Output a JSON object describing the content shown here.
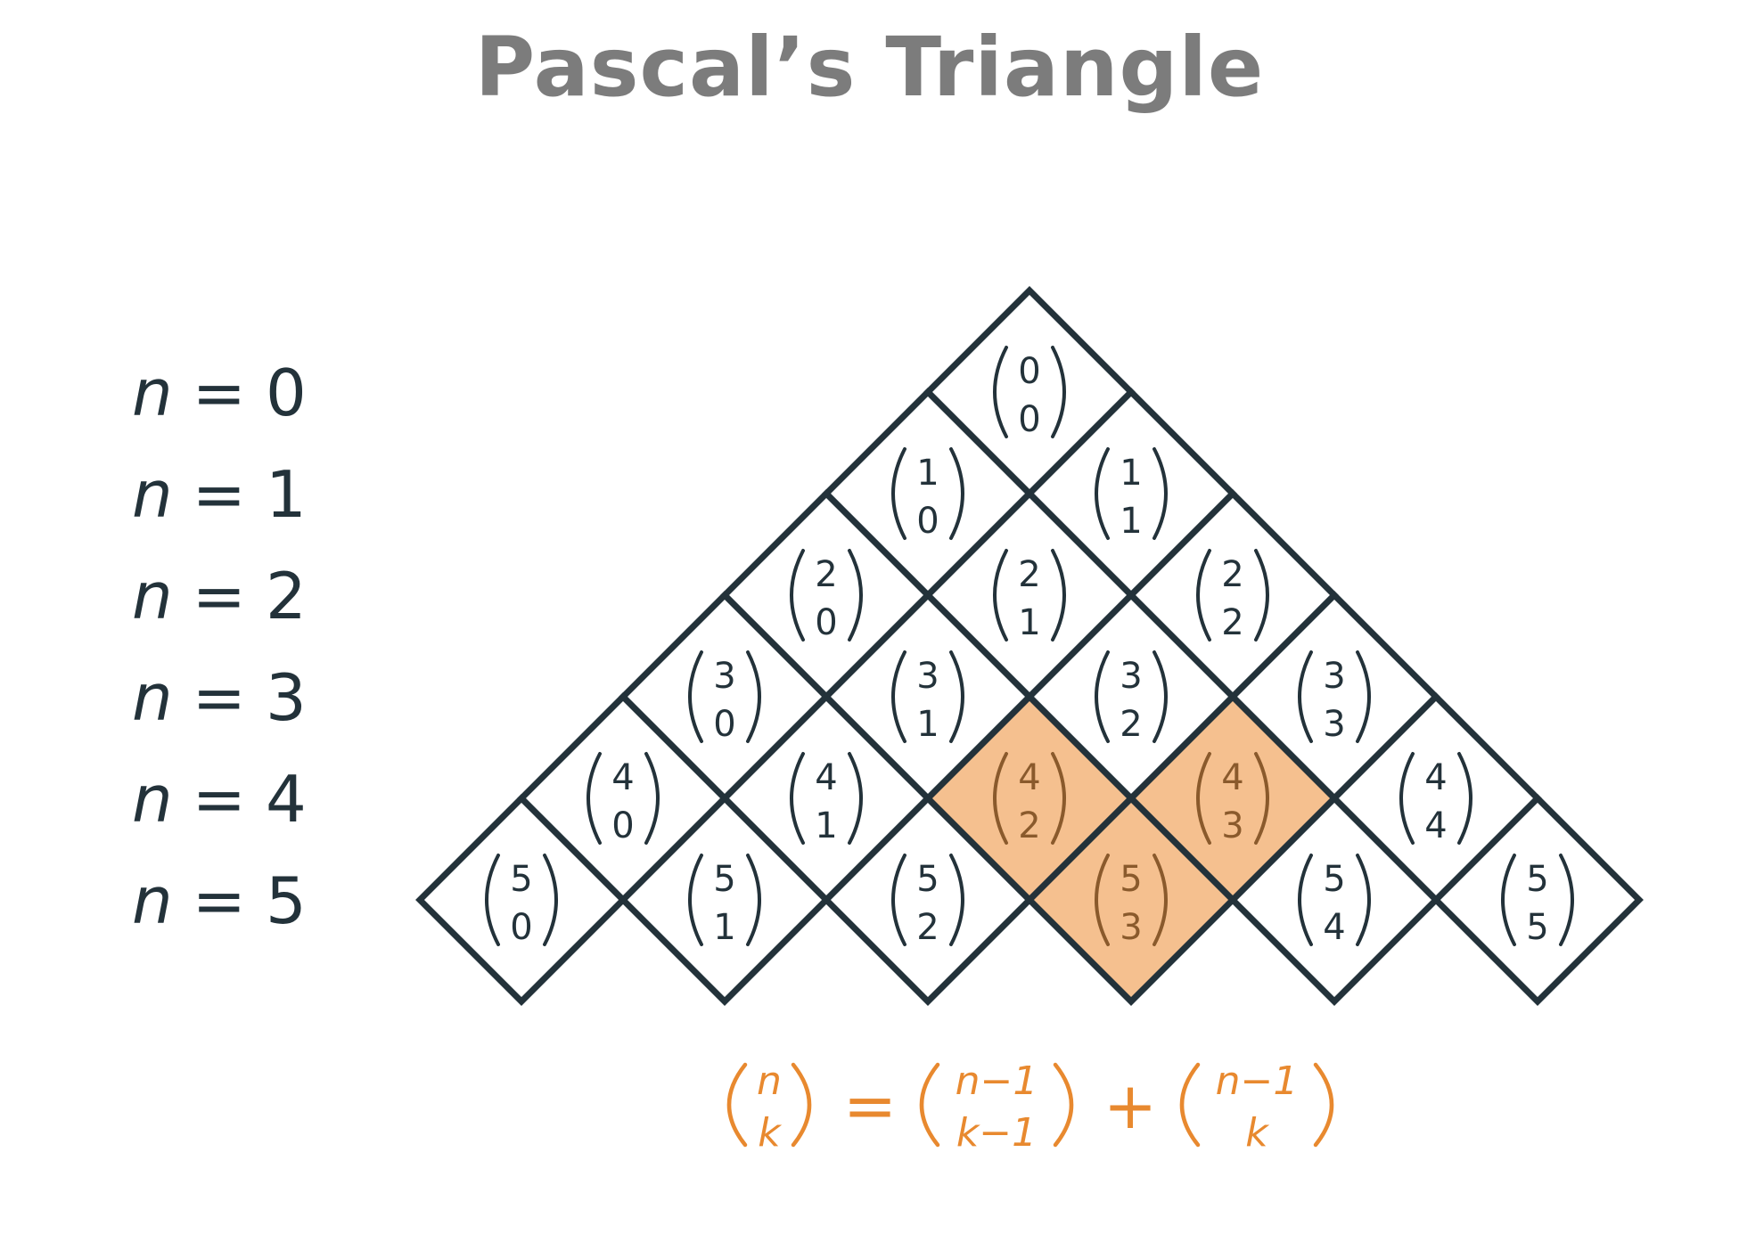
{
  "title": "Pascal’s Triangle",
  "row_labels": [
    {
      "var": "n",
      "eq": "=",
      "value": "0"
    },
    {
      "var": "n",
      "eq": "=",
      "value": "1"
    },
    {
      "var": "n",
      "eq": "=",
      "value": "2"
    },
    {
      "var": "n",
      "eq": "=",
      "value": "3"
    },
    {
      "var": "n",
      "eq": "=",
      "value": "4"
    },
    {
      "var": "n",
      "eq": "=",
      "value": "5"
    }
  ],
  "rows": [
    [
      {
        "n": "0",
        "k": "0"
      }
    ],
    [
      {
        "n": "1",
        "k": "0"
      },
      {
        "n": "1",
        "k": "1"
      }
    ],
    [
      {
        "n": "2",
        "k": "0"
      },
      {
        "n": "2",
        "k": "1"
      },
      {
        "n": "2",
        "k": "2"
      }
    ],
    [
      {
        "n": "3",
        "k": "0"
      },
      {
        "n": "3",
        "k": "1"
      },
      {
        "n": "3",
        "k": "2"
      },
      {
        "n": "3",
        "k": "3"
      }
    ],
    [
      {
        "n": "4",
        "k": "0"
      },
      {
        "n": "4",
        "k": "1"
      },
      {
        "n": "4",
        "k": "2",
        "highlight": true
      },
      {
        "n": "4",
        "k": "3",
        "highlight": true
      },
      {
        "n": "4",
        "k": "4"
      }
    ],
    [
      {
        "n": "5",
        "k": "0"
      },
      {
        "n": "5",
        "k": "1"
      },
      {
        "n": "5",
        "k": "2"
      },
      {
        "n": "5",
        "k": "3",
        "highlight": true
      },
      {
        "n": "5",
        "k": "4"
      },
      {
        "n": "5",
        "k": "5"
      }
    ]
  ],
  "formula": {
    "lhs_top": "n",
    "lhs_bottom": "k",
    "equals": "=",
    "t1_top": "n−1",
    "t1_bottom": "k−1",
    "plus": "+",
    "t2_top": "n−1",
    "t2_bottom": "k"
  },
  "colors": {
    "outline": "#23323a",
    "highlight_fill": "#f5c08f",
    "highlight_text": "#8a5a2c",
    "formula": "#e8892f",
    "title": "#7c7c7c"
  }
}
